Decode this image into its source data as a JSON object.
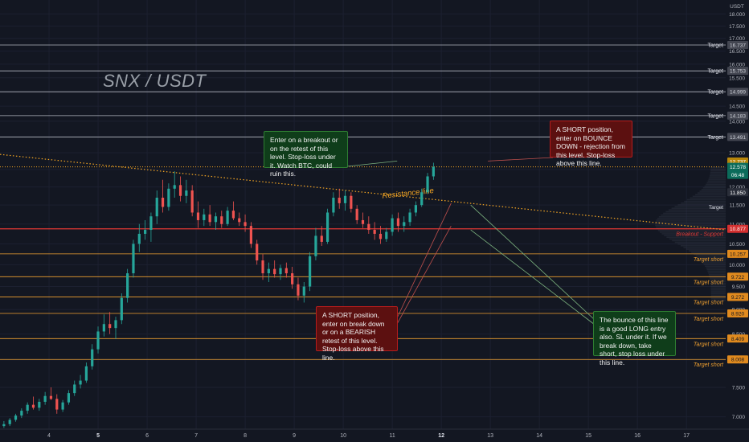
{
  "title": "SNX / USDT",
  "chart_data": {
    "type": "candlestick",
    "title": "SNX / USDT",
    "y_unit_label": "USDT",
    "y_scale": "log",
    "ylim": [
      6.8,
      18.6
    ],
    "xlim": [
      3.0,
      17.8
    ],
    "x_ticks": [
      "4",
      "5",
      "6",
      "7",
      "8",
      "9",
      "10",
      "11",
      "12",
      "13",
      "14",
      "15",
      "16",
      "17"
    ],
    "y_ticks": [
      "18.000",
      "17.500",
      "17.000",
      "16.500",
      "16.000",
      "15.500",
      "15.000",
      "14.500",
      "14.000",
      "13.500",
      "13.000",
      "12.500",
      "12.000",
      "11.500",
      "11.000",
      "10.500",
      "10.000",
      "9.500",
      "9.000",
      "8.500",
      "8.000",
      "7.500",
      "7.000"
    ],
    "current_price": {
      "value": 12.578,
      "label": "12.578",
      "countdown": "06:48"
    },
    "extra_price_labels": [
      {
        "value": 12.737,
        "label": "12.737",
        "color": "#b8860b"
      },
      {
        "value": 11.85,
        "label": "11.850",
        "color": "#2a2e39"
      }
    ],
    "levels": [
      {
        "value": 16.737,
        "label": "16.737",
        "tag": "Target",
        "kind": "target"
      },
      {
        "value": 15.753,
        "label": "15.753",
        "tag": "Target",
        "kind": "target"
      },
      {
        "value": 14.999,
        "label": "14.999",
        "tag": "Target",
        "kind": "target"
      },
      {
        "value": 14.183,
        "label": "14.183",
        "tag": "Target",
        "kind": "target"
      },
      {
        "value": 13.491,
        "label": "13.491",
        "tag": "Target",
        "kind": "target"
      },
      {
        "value": 10.877,
        "label": "10.877",
        "tag": "Breakout - Support",
        "kind": "support"
      },
      {
        "value": 10.257,
        "label": "10.257",
        "tag": "Target short",
        "kind": "short"
      },
      {
        "value": 9.722,
        "label": "9.722",
        "tag": "Target short",
        "kind": "short"
      },
      {
        "value": 9.272,
        "label": "9.272",
        "tag": "Target short",
        "kind": "short"
      },
      {
        "value": 8.92,
        "label": "8.920",
        "tag": "Target short",
        "kind": "short"
      },
      {
        "value": 8.409,
        "label": "8.409",
        "tag": "Target short",
        "kind": "short"
      },
      {
        "value": 8.008,
        "label": "8.008",
        "tag": "Target short",
        "kind": "short"
      }
    ],
    "ohlc": [
      {
        "x": 3.08,
        "o": 6.85,
        "h": 6.93,
        "l": 6.82,
        "c": 6.88
      },
      {
        "x": 3.2,
        "o": 6.88,
        "h": 6.98,
        "l": 6.85,
        "c": 6.95
      },
      {
        "x": 3.32,
        "o": 6.95,
        "h": 7.05,
        "l": 6.92,
        "c": 7.02
      },
      {
        "x": 3.44,
        "o": 7.02,
        "h": 7.14,
        "l": 6.98,
        "c": 7.1
      },
      {
        "x": 3.56,
        "o": 7.1,
        "h": 7.24,
        "l": 7.05,
        "c": 7.2
      },
      {
        "x": 3.68,
        "o": 7.2,
        "h": 7.34,
        "l": 7.12,
        "c": 7.15
      },
      {
        "x": 3.8,
        "o": 7.15,
        "h": 7.3,
        "l": 7.1,
        "c": 7.25
      },
      {
        "x": 3.92,
        "o": 7.25,
        "h": 7.42,
        "l": 7.2,
        "c": 7.35
      },
      {
        "x": 4.04,
        "o": 7.35,
        "h": 7.5,
        "l": 7.28,
        "c": 7.3
      },
      {
        "x": 4.16,
        "o": 7.3,
        "h": 7.38,
        "l": 7.05,
        "c": 7.12
      },
      {
        "x": 4.28,
        "o": 7.12,
        "h": 7.28,
        "l": 7.08,
        "c": 7.24
      },
      {
        "x": 4.4,
        "o": 7.24,
        "h": 7.45,
        "l": 7.2,
        "c": 7.4
      },
      {
        "x": 4.52,
        "o": 7.4,
        "h": 7.62,
        "l": 7.35,
        "c": 7.55
      },
      {
        "x": 4.64,
        "o": 7.55,
        "h": 7.72,
        "l": 7.48,
        "c": 7.62
      },
      {
        "x": 4.76,
        "o": 7.62,
        "h": 7.95,
        "l": 7.58,
        "c": 7.88
      },
      {
        "x": 4.88,
        "o": 7.88,
        "h": 8.3,
        "l": 7.82,
        "c": 8.2
      },
      {
        "x": 5.0,
        "o": 8.2,
        "h": 8.65,
        "l": 8.12,
        "c": 8.55
      },
      {
        "x": 5.12,
        "o": 8.55,
        "h": 8.9,
        "l": 8.45,
        "c": 8.7
      },
      {
        "x": 5.24,
        "o": 8.7,
        "h": 8.95,
        "l": 8.5,
        "c": 8.62
      },
      {
        "x": 5.36,
        "o": 8.62,
        "h": 8.85,
        "l": 8.4,
        "c": 8.78
      },
      {
        "x": 5.48,
        "o": 8.78,
        "h": 9.35,
        "l": 8.7,
        "c": 9.25
      },
      {
        "x": 5.6,
        "o": 9.25,
        "h": 9.9,
        "l": 9.15,
        "c": 9.8
      },
      {
        "x": 5.72,
        "o": 9.8,
        "h": 10.6,
        "l": 9.7,
        "c": 10.5
      },
      {
        "x": 5.84,
        "o": 10.5,
        "h": 11.0,
        "l": 10.3,
        "c": 10.75
      },
      {
        "x": 5.96,
        "o": 10.75,
        "h": 11.1,
        "l": 10.6,
        "c": 10.85
      },
      {
        "x": 6.08,
        "o": 10.85,
        "h": 11.3,
        "l": 10.55,
        "c": 11.2
      },
      {
        "x": 6.2,
        "o": 11.2,
        "h": 11.9,
        "l": 11.0,
        "c": 11.7
      },
      {
        "x": 6.32,
        "o": 11.7,
        "h": 12.2,
        "l": 11.3,
        "c": 11.45
      },
      {
        "x": 6.44,
        "o": 11.45,
        "h": 12.1,
        "l": 11.35,
        "c": 11.95
      },
      {
        "x": 6.56,
        "o": 11.95,
        "h": 12.45,
        "l": 11.7,
        "c": 12.05
      },
      {
        "x": 6.68,
        "o": 12.05,
        "h": 12.3,
        "l": 11.6,
        "c": 11.75
      },
      {
        "x": 6.8,
        "o": 11.75,
        "h": 12.2,
        "l": 11.55,
        "c": 11.9
      },
      {
        "x": 6.92,
        "o": 11.9,
        "h": 12.05,
        "l": 11.2,
        "c": 11.3
      },
      {
        "x": 7.04,
        "o": 11.3,
        "h": 11.6,
        "l": 10.9,
        "c": 11.1
      },
      {
        "x": 7.16,
        "o": 11.1,
        "h": 11.4,
        "l": 10.95,
        "c": 11.25
      },
      {
        "x": 7.28,
        "o": 11.25,
        "h": 11.5,
        "l": 10.95,
        "c": 11.05
      },
      {
        "x": 7.4,
        "o": 11.05,
        "h": 11.3,
        "l": 10.85,
        "c": 11.2
      },
      {
        "x": 7.52,
        "o": 11.2,
        "h": 11.35,
        "l": 10.9,
        "c": 11.0
      },
      {
        "x": 7.64,
        "o": 11.0,
        "h": 11.45,
        "l": 10.95,
        "c": 11.35
      },
      {
        "x": 7.76,
        "o": 11.35,
        "h": 11.6,
        "l": 11.1,
        "c": 11.15
      },
      {
        "x": 7.88,
        "o": 11.15,
        "h": 11.3,
        "l": 10.95,
        "c": 11.05
      },
      {
        "x": 8.0,
        "o": 11.05,
        "h": 11.25,
        "l": 10.8,
        "c": 10.95
      },
      {
        "x": 8.12,
        "o": 10.95,
        "h": 11.05,
        "l": 10.4,
        "c": 10.5
      },
      {
        "x": 8.24,
        "o": 10.5,
        "h": 10.6,
        "l": 10.0,
        "c": 10.1
      },
      {
        "x": 8.36,
        "o": 10.1,
        "h": 10.25,
        "l": 9.65,
        "c": 9.8
      },
      {
        "x": 8.48,
        "o": 9.8,
        "h": 10.05,
        "l": 9.6,
        "c": 9.9
      },
      {
        "x": 8.6,
        "o": 9.9,
        "h": 10.1,
        "l": 9.7,
        "c": 9.78
      },
      {
        "x": 8.72,
        "o": 9.78,
        "h": 10.0,
        "l": 9.65,
        "c": 9.92
      },
      {
        "x": 8.84,
        "o": 9.92,
        "h": 10.05,
        "l": 9.7,
        "c": 9.8
      },
      {
        "x": 8.96,
        "o": 9.8,
        "h": 9.95,
        "l": 9.45,
        "c": 9.55
      },
      {
        "x": 9.08,
        "o": 9.55,
        "h": 9.7,
        "l": 9.2,
        "c": 9.3
      },
      {
        "x": 9.2,
        "o": 9.3,
        "h": 9.6,
        "l": 9.15,
        "c": 9.5
      },
      {
        "x": 9.32,
        "o": 9.5,
        "h": 10.3,
        "l": 9.4,
        "c": 10.2
      },
      {
        "x": 9.44,
        "o": 10.2,
        "h": 10.9,
        "l": 10.1,
        "c": 10.7
      },
      {
        "x": 9.56,
        "o": 10.7,
        "h": 10.95,
        "l": 10.45,
        "c": 10.55
      },
      {
        "x": 9.68,
        "o": 10.55,
        "h": 11.4,
        "l": 10.5,
        "c": 11.3
      },
      {
        "x": 9.8,
        "o": 11.3,
        "h": 11.85,
        "l": 11.2,
        "c": 11.7
      },
      {
        "x": 9.92,
        "o": 11.7,
        "h": 11.95,
        "l": 11.4,
        "c": 11.55
      },
      {
        "x": 10.04,
        "o": 11.55,
        "h": 11.9,
        "l": 11.35,
        "c": 11.75
      },
      {
        "x": 10.16,
        "o": 11.75,
        "h": 11.85,
        "l": 11.3,
        "c": 11.4
      },
      {
        "x": 10.28,
        "o": 11.4,
        "h": 11.5,
        "l": 11.0,
        "c": 11.1
      },
      {
        "x": 10.4,
        "o": 11.1,
        "h": 11.3,
        "l": 10.9,
        "c": 11.0
      },
      {
        "x": 10.52,
        "o": 11.0,
        "h": 11.2,
        "l": 10.75,
        "c": 10.85
      },
      {
        "x": 10.64,
        "o": 10.85,
        "h": 11.05,
        "l": 10.6,
        "c": 10.75
      },
      {
        "x": 10.76,
        "o": 10.75,
        "h": 10.95,
        "l": 10.5,
        "c": 10.62
      },
      {
        "x": 10.88,
        "o": 10.62,
        "h": 10.9,
        "l": 10.55,
        "c": 10.8
      },
      {
        "x": 11.0,
        "o": 10.8,
        "h": 11.25,
        "l": 10.7,
        "c": 11.15
      },
      {
        "x": 11.12,
        "o": 11.15,
        "h": 11.3,
        "l": 10.8,
        "c": 10.95
      },
      {
        "x": 11.24,
        "o": 10.95,
        "h": 11.2,
        "l": 10.8,
        "c": 11.05
      },
      {
        "x": 11.36,
        "o": 11.05,
        "h": 11.4,
        "l": 10.95,
        "c": 11.3
      },
      {
        "x": 11.48,
        "o": 11.3,
        "h": 11.6,
        "l": 11.2,
        "c": 11.5
      },
      {
        "x": 11.6,
        "o": 11.5,
        "h": 11.95,
        "l": 11.45,
        "c": 11.85
      },
      {
        "x": 11.72,
        "o": 11.85,
        "h": 12.4,
        "l": 11.8,
        "c": 12.3
      },
      {
        "x": 11.84,
        "o": 12.3,
        "h": 12.7,
        "l": 12.2,
        "c": 12.578
      }
    ],
    "annotations": [
      {
        "text": "Resistance line",
        "kind": "trendline"
      }
    ]
  },
  "notes": {
    "note1": "Enter on a breakout or on the retest of this level. Stop-loss under it. Watch BTC, could ruin this.",
    "note2": "A SHORT position, enter on BOUNCE DOWN - rejection from this level. Stop-loss above this line.",
    "note3": "A SHORT position, enter on break down or on a BEARISH retest of this level. Stop-loss above this line.",
    "note4": "The bounce of this line is a good LONG entry also. SL under it. If we break down, take short, stop loss under this line."
  },
  "colors": {
    "background": "#131722",
    "up": "#26a69a",
    "down": "#ef5350",
    "target_line": "#b2b5be",
    "short_line": "#f0a030",
    "support_line": "#e53935",
    "resistance": "#f5a623",
    "accent": "#f5a623"
  }
}
